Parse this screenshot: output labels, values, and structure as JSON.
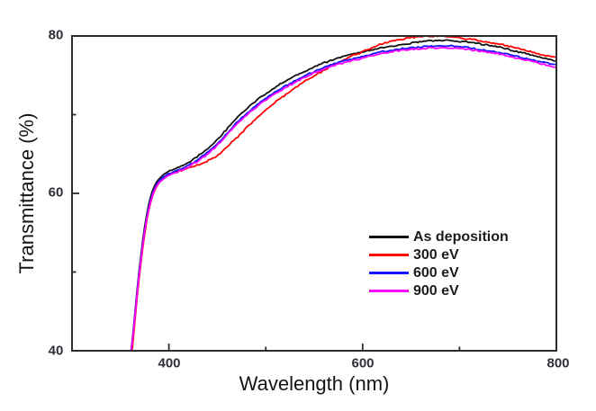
{
  "chart_data": {
    "type": "line",
    "title": "",
    "xlabel": "Wavelength (nm)",
    "ylabel": "Transmittance (%)",
    "xlim": [
      300,
      800
    ],
    "ylim": [
      40,
      80
    ],
    "grid": false,
    "legend_position": "inside lower right",
    "x_major_ticks": [
      400,
      600,
      800
    ],
    "x_minor_ticks": [
      500,
      700
    ],
    "y_major_ticks": [
      80,
      60,
      40
    ],
    "y_minor_ticks": [
      70,
      50
    ],
    "x_tick_labels": [
      "400",
      "600",
      "800"
    ],
    "y_tick_labels": [
      "80",
      "60",
      "40"
    ],
    "frame_color": "#2b2b2b",
    "x": [
      361,
      364,
      367,
      370,
      374,
      378,
      382,
      386,
      390,
      395,
      400,
      410,
      420,
      430,
      440,
      450,
      460,
      470,
      480,
      490,
      500,
      510,
      520,
      530,
      540,
      550,
      560,
      570,
      580,
      590,
      600,
      610,
      620,
      630,
      640,
      650,
      660,
      670,
      680,
      690,
      700,
      710,
      720,
      730,
      740,
      750,
      760,
      770,
      780,
      790,
      800
    ],
    "series": [
      {
        "name": "As deposition",
        "color": "#111111",
        "values": [
          40.0,
          43.5,
          47.5,
          51.0,
          55.0,
          58.0,
          60.0,
          61.2,
          61.9,
          62.4,
          62.8,
          63.3,
          63.9,
          64.7,
          65.7,
          66.8,
          68.2,
          69.6,
          70.7,
          71.8,
          72.7,
          73.5,
          74.2,
          74.9,
          75.5,
          76.1,
          76.6,
          77.0,
          77.4,
          77.7,
          78.0,
          78.2,
          78.5,
          78.7,
          78.9,
          79.1,
          79.3,
          79.4,
          79.4,
          79.4,
          79.3,
          79.2,
          79.0,
          78.8,
          78.6,
          78.3,
          78.0,
          77.7,
          77.4,
          77.1,
          76.8
        ]
      },
      {
        "name": "300 eV",
        "color": "#ff0000",
        "values": [
          38.8,
          42.5,
          46.5,
          50.0,
          54.0,
          57.2,
          59.3,
          60.6,
          61.4,
          62.0,
          62.4,
          62.8,
          63.2,
          63.6,
          64.1,
          64.8,
          65.9,
          67.1,
          68.3,
          69.5,
          70.6,
          71.6,
          72.5,
          73.4,
          74.2,
          74.9,
          75.6,
          76.3,
          76.9,
          77.5,
          78.0,
          78.5,
          79.0,
          79.3,
          79.6,
          79.8,
          79.9,
          80.0,
          80.0,
          79.9,
          79.8,
          79.6,
          79.4,
          79.2,
          79.0,
          78.7,
          78.4,
          78.1,
          77.8,
          77.5,
          77.2
        ]
      },
      {
        "name": "600 eV",
        "color": "#1414ff",
        "values": [
          40.0,
          43.2,
          47.2,
          50.6,
          54.6,
          57.6,
          59.6,
          60.9,
          61.6,
          62.1,
          62.5,
          63.0,
          63.5,
          64.3,
          65.2,
          66.3,
          67.6,
          69.0,
          70.1,
          71.2,
          72.1,
          72.9,
          73.6,
          74.3,
          74.9,
          75.5,
          76.0,
          76.4,
          76.8,
          77.1,
          77.4,
          77.7,
          78.0,
          78.2,
          78.4,
          78.5,
          78.6,
          78.7,
          78.7,
          78.7,
          78.6,
          78.5,
          78.3,
          78.1,
          77.9,
          77.7,
          77.4,
          77.1,
          76.8,
          76.6,
          76.3
        ]
      },
      {
        "name": "900 eV",
        "color": "#ff00ff",
        "values": [
          40.0,
          43.0,
          47.0,
          50.4,
          54.4,
          57.4,
          59.4,
          60.7,
          61.4,
          61.9,
          62.3,
          62.8,
          63.3,
          64.1,
          65.0,
          66.1,
          67.4,
          68.8,
          69.9,
          71.0,
          71.9,
          72.7,
          73.4,
          74.1,
          74.7,
          75.3,
          75.8,
          76.2,
          76.6,
          76.9,
          77.2,
          77.5,
          77.8,
          78.0,
          78.2,
          78.3,
          78.4,
          78.5,
          78.5,
          78.5,
          78.4,
          78.3,
          78.1,
          77.9,
          77.7,
          77.5,
          77.2,
          76.9,
          76.6,
          76.3,
          76.0
        ]
      }
    ]
  }
}
